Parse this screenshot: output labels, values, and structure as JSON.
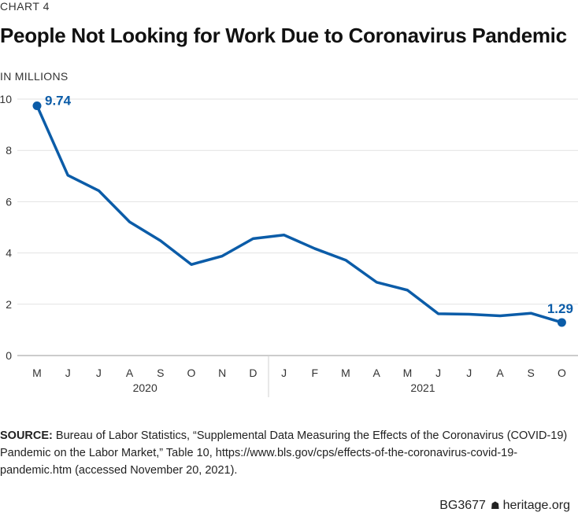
{
  "chart_label": "CHART 4",
  "unit_label": "IN MILLIONS",
  "source_label": "SOURCE:",
  "source_text": "Bureau of Labor Statistics, “Supplemental Data Measuring the Effects of the Coronavirus (COVID-19) Pandemic on the Labor Market,” Table 10, https://www.bls.gov/cps/effects-of-the-coronavirus-covid-19-pandemic.htm (accessed November 20, 2021).",
  "footer_code": "BG3677",
  "footer_logo": "☗",
  "footer_site": "heritage.org",
  "chart_data": {
    "type": "line",
    "title": "People Not Looking for Work Due to Coronavirus Pandemic",
    "ylabel": "IN MILLIONS",
    "ylim": [
      0,
      10
    ],
    "yticks": [
      0,
      2,
      4,
      6,
      8,
      10
    ],
    "grid": true,
    "color": "#0b5ca8",
    "categories": [
      "M",
      "J",
      "J",
      "A",
      "S",
      "O",
      "N",
      "D",
      "J",
      "F",
      "M",
      "A",
      "M",
      "J",
      "J",
      "A",
      "S",
      "O"
    ],
    "year_groups": [
      {
        "label": "2020",
        "start": 0,
        "end": 7
      },
      {
        "label": "2021",
        "start": 8,
        "end": 17
      }
    ],
    "series": [
      {
        "values": [
          9.74,
          7.03,
          6.43,
          5.21,
          4.48,
          3.55,
          3.88,
          4.56,
          4.7,
          4.17,
          3.72,
          2.86,
          2.55,
          1.63,
          1.61,
          1.55,
          1.65,
          1.29
        ]
      }
    ],
    "annotations": [
      {
        "index": 0,
        "text": "9.74"
      },
      {
        "index": 17,
        "text": "1.29"
      }
    ]
  }
}
